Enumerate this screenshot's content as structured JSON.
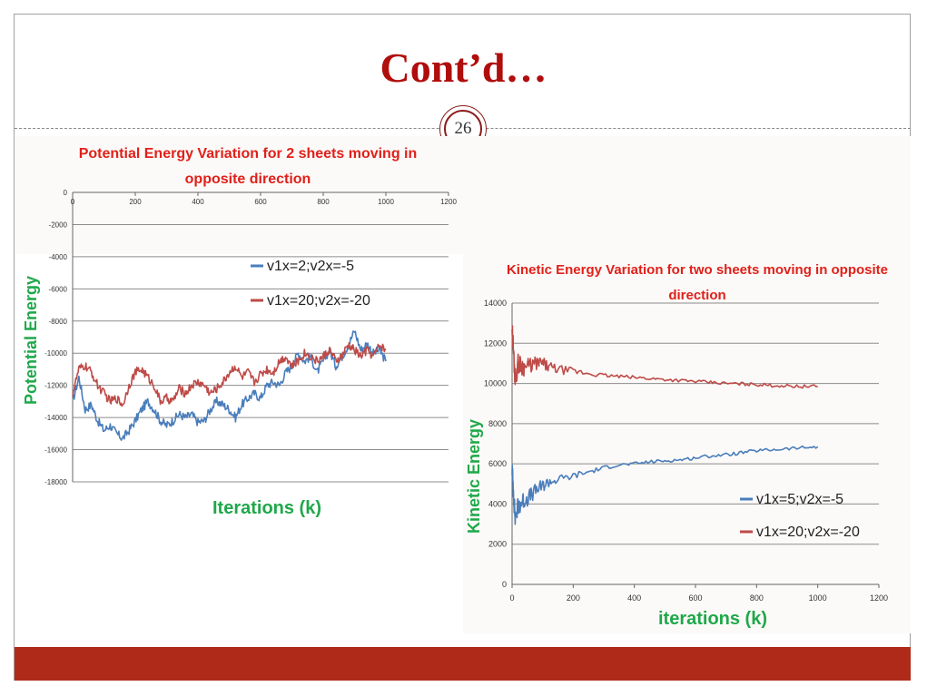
{
  "slide": {
    "title": "Cont’d…",
    "page_number": "26",
    "colors": {
      "title": "#b00d0d",
      "footer": "#b02a1a",
      "badge": "#8b1a1a"
    }
  },
  "chart_data": [
    {
      "type": "line",
      "title": "Potential Energy Variation for 2 sheets moving in opposite direction",
      "title_lines": [
        "Potential Energy Variation for 2 sheets moving in",
        "opposite direction"
      ],
      "xlabel": "Iterations (k)",
      "ylabel": "Potential Energy",
      "xlim": [
        0,
        1200
      ],
      "ylim": [
        -18000,
        0
      ],
      "xticks": [
        0,
        200,
        400,
        600,
        800,
        1000,
        1200
      ],
      "yticks": [
        0,
        -2000,
        -4000,
        -6000,
        -8000,
        -10000,
        -12000,
        -14000,
        -16000,
        -18000
      ],
      "grid": true,
      "legend": "inside-top-center",
      "series": [
        {
          "name": "v1x=2;v2x=-5",
          "color": "#4a7ebb",
          "x": [
            0,
            20,
            40,
            60,
            80,
            100,
            120,
            140,
            160,
            180,
            200,
            220,
            240,
            260,
            280,
            300,
            320,
            340,
            360,
            380,
            400,
            420,
            440,
            460,
            480,
            500,
            520,
            540,
            560,
            580,
            600,
            620,
            640,
            660,
            680,
            700,
            720,
            740,
            760,
            780,
            800,
            820,
            840,
            860,
            880,
            900,
            920,
            940,
            960,
            980,
            1000
          ],
          "y": [
            -13000,
            -11500,
            -13500,
            -13200,
            -14200,
            -14800,
            -14500,
            -15000,
            -15300,
            -14800,
            -14200,
            -13500,
            -13000,
            -13500,
            -14200,
            -14500,
            -14200,
            -13800,
            -14000,
            -13800,
            -14300,
            -14200,
            -13500,
            -13000,
            -13200,
            -13500,
            -14000,
            -13200,
            -12800,
            -12500,
            -12800,
            -12000,
            -11800,
            -12000,
            -11200,
            -10800,
            -10000,
            -10500,
            -10200,
            -11200,
            -10500,
            -9800,
            -10800,
            -10200,
            -9500,
            -8600,
            -9800,
            -9400,
            -10000,
            -9800,
            -10500
          ]
        },
        {
          "name": "v1x=20;v2x=-20",
          "color": "#be4b48",
          "x": [
            0,
            20,
            40,
            60,
            80,
            100,
            120,
            140,
            160,
            180,
            200,
            220,
            240,
            260,
            280,
            300,
            320,
            340,
            360,
            380,
            400,
            420,
            440,
            460,
            480,
            500,
            520,
            540,
            560,
            580,
            600,
            620,
            640,
            660,
            680,
            700,
            720,
            740,
            760,
            780,
            800,
            820,
            840,
            860,
            880,
            900,
            920,
            940,
            960,
            980,
            1000
          ],
          "y": [
            -12500,
            -11000,
            -10800,
            -11200,
            -12000,
            -12500,
            -13000,
            -12800,
            -13200,
            -12000,
            -11200,
            -11000,
            -11500,
            -12000,
            -13000,
            -12800,
            -13000,
            -12200,
            -12500,
            -12000,
            -11800,
            -12000,
            -12500,
            -12200,
            -11800,
            -11200,
            -10800,
            -11500,
            -11200,
            -11800,
            -11300,
            -11000,
            -11200,
            -10500,
            -10200,
            -10800,
            -10500,
            -10000,
            -10200,
            -10500,
            -10200,
            -9800,
            -10500,
            -10200,
            -9500,
            -9800,
            -10200,
            -9800,
            -10200,
            -9500,
            -9800
          ]
        }
      ]
    },
    {
      "type": "line",
      "title": "Kinetic Energy Variation for two sheets moving in opposite direction",
      "title_lines": [
        "Kinetic Energy Variation for two sheets moving in opposite",
        "direction"
      ],
      "xlabel": "iterations (k)",
      "ylabel": "Kinetic Energy",
      "xlim": [
        0,
        1200
      ],
      "ylim": [
        0,
        14000
      ],
      "xticks": [
        0,
        200,
        400,
        600,
        800,
        1000,
        1200
      ],
      "yticks": [
        0,
        2000,
        4000,
        6000,
        8000,
        10000,
        12000,
        14000
      ],
      "grid": true,
      "legend": "right",
      "series": [
        {
          "name": "v1x=5;v2x=-5",
          "color": "#4a7ebb",
          "x": [
            0,
            5,
            10,
            20,
            30,
            40,
            60,
            80,
            100,
            120,
            150,
            200,
            250,
            300,
            350,
            400,
            450,
            500,
            550,
            600,
            650,
            700,
            750,
            800,
            850,
            900,
            950,
            1000
          ],
          "y": [
            5800,
            4500,
            3300,
            3900,
            4100,
            4200,
            4400,
            4700,
            4900,
            5100,
            5200,
            5400,
            5600,
            5800,
            5950,
            6000,
            6100,
            6150,
            6200,
            6300,
            6400,
            6450,
            6550,
            6650,
            6700,
            6750,
            6800,
            6850
          ]
        },
        {
          "name": "v1x=20;v2x=-20",
          "color": "#be4b48",
          "x": [
            0,
            5,
            10,
            20,
            30,
            40,
            60,
            80,
            100,
            120,
            150,
            200,
            250,
            300,
            350,
            400,
            450,
            500,
            550,
            600,
            650,
            700,
            750,
            800,
            850,
            900,
            950,
            1000
          ],
          "y": [
            12800,
            11500,
            10200,
            11000,
            10900,
            10800,
            10900,
            11000,
            11000,
            10800,
            10700,
            10600,
            10500,
            10400,
            10350,
            10300,
            10250,
            10200,
            10150,
            10100,
            10050,
            10000,
            9980,
            9950,
            9900,
            9880,
            9850,
            9850
          ]
        }
      ]
    }
  ]
}
